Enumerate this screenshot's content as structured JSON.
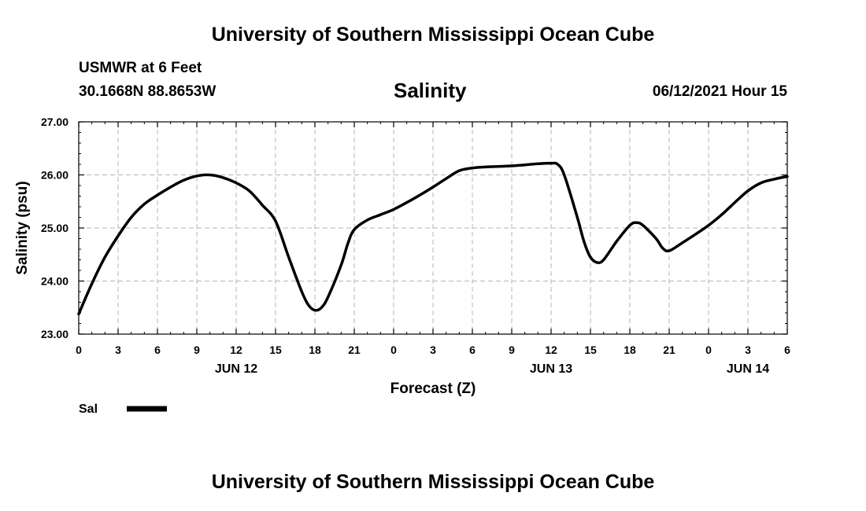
{
  "header": {
    "title": "University of Southern Mississippi Ocean Cube",
    "station": "USMWR at 6 Feet",
    "coords": "30.1668N  88.8653W",
    "datetime": "06/12/2021 Hour 15"
  },
  "footer": {
    "title": "University of Southern Mississippi Ocean Cube"
  },
  "chart_data": {
    "type": "line",
    "title": "Salinity",
    "xlabel": "Forecast (Z)",
    "ylabel": "Salinity (psu)",
    "ylim": [
      23.0,
      27.0
    ],
    "y_ticks": [
      "23.00",
      "24.00",
      "25.00",
      "26.00",
      "27.00"
    ],
    "xlim_hours": [
      0,
      54
    ],
    "x_ticks": [
      {
        "hour": 0,
        "label": "0"
      },
      {
        "hour": 3,
        "label": "3"
      },
      {
        "hour": 6,
        "label": "6"
      },
      {
        "hour": 9,
        "label": "9"
      },
      {
        "hour": 12,
        "label": "12"
      },
      {
        "hour": 15,
        "label": "15"
      },
      {
        "hour": 18,
        "label": "18"
      },
      {
        "hour": 21,
        "label": "21"
      },
      {
        "hour": 24,
        "label": "0"
      },
      {
        "hour": 27,
        "label": "3"
      },
      {
        "hour": 30,
        "label": "6"
      },
      {
        "hour": 33,
        "label": "9"
      },
      {
        "hour": 36,
        "label": "12"
      },
      {
        "hour": 39,
        "label": "15"
      },
      {
        "hour": 42,
        "label": "18"
      },
      {
        "hour": 45,
        "label": "21"
      },
      {
        "hour": 48,
        "label": "0"
      },
      {
        "hour": 51,
        "label": "3"
      },
      {
        "hour": 54,
        "label": "6"
      }
    ],
    "day_labels": [
      {
        "hour": 12,
        "label": "JUN 12"
      },
      {
        "hour": 36,
        "label": "JUN 13"
      },
      {
        "hour": 51,
        "label": "JUN 14"
      }
    ],
    "grid": true,
    "legend_position": "bottom-left",
    "series": [
      {
        "name": "Sal",
        "color": "#000000",
        "x": [
          0,
          1,
          2,
          3,
          4,
          5,
          6,
          7,
          8,
          9,
          10,
          11,
          12,
          13,
          14,
          15,
          16,
          17,
          17.5,
          18,
          18.5,
          19,
          20,
          20.5,
          21,
          22,
          23,
          24,
          25,
          26,
          27,
          28,
          29,
          30,
          31,
          32,
          33,
          34,
          35,
          36,
          36.5,
          37,
          38,
          38.5,
          39,
          39.5,
          40,
          41,
          42,
          42.5,
          43,
          44,
          44.5,
          45,
          46,
          47,
          48,
          49,
          50,
          51,
          52,
          53,
          54
        ],
        "y": [
          23.38,
          23.95,
          24.45,
          24.85,
          25.2,
          25.45,
          25.62,
          25.77,
          25.9,
          25.98,
          26.0,
          25.95,
          25.85,
          25.7,
          25.43,
          25.13,
          24.45,
          23.8,
          23.55,
          23.45,
          23.5,
          23.7,
          24.3,
          24.7,
          24.97,
          25.15,
          25.25,
          25.35,
          25.48,
          25.62,
          25.77,
          25.93,
          26.08,
          26.13,
          26.15,
          26.16,
          26.17,
          26.19,
          26.21,
          26.22,
          26.2,
          26.0,
          25.2,
          24.75,
          24.45,
          24.35,
          24.4,
          24.75,
          25.05,
          25.1,
          25.05,
          24.8,
          24.62,
          24.57,
          24.72,
          24.88,
          25.05,
          25.25,
          25.48,
          25.7,
          25.85,
          25.92,
          25.97
        ]
      }
    ]
  }
}
